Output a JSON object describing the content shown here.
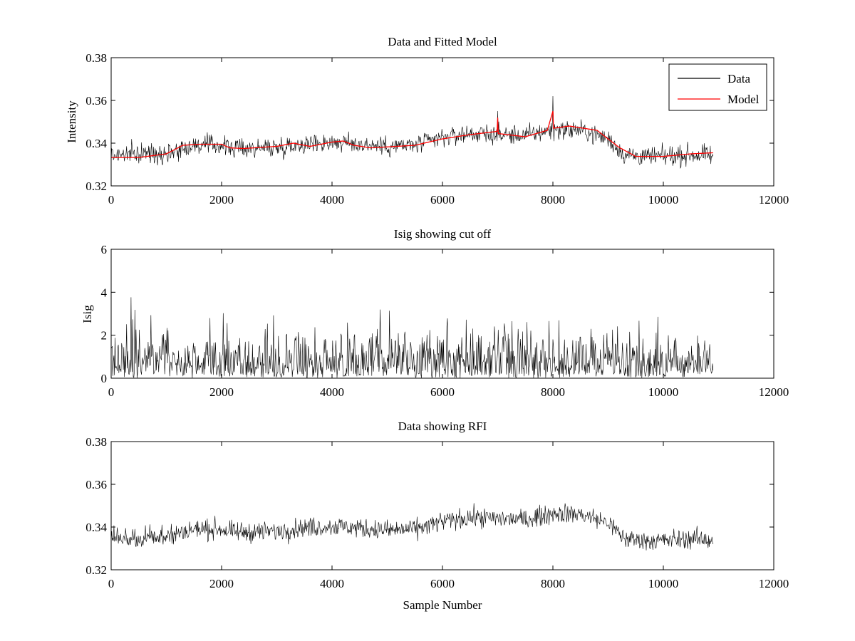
{
  "chart_data": [
    {
      "type": "line",
      "title": "Data and Fitted Model",
      "xlabel": "",
      "ylabel": "Intensity",
      "xlim": [
        0,
        12000
      ],
      "ylim": [
        0.32,
        0.38
      ],
      "xticks": [
        0,
        2000,
        4000,
        6000,
        8000,
        10000,
        12000
      ],
      "yticks": [
        0.32,
        0.34,
        0.36,
        0.38
      ],
      "xtick_labels": [
        "0",
        "2000",
        "4000",
        "6000",
        "8000",
        "10000",
        "12000"
      ],
      "ytick_labels": [
        "0.32",
        "0.34",
        "0.36",
        "0.38"
      ],
      "grid": false,
      "legend": {
        "position": "top-right",
        "entries": [
          "Data",
          "Model"
        ]
      },
      "series": [
        {
          "name": "Data",
          "color": "#000000",
          "kind": "noisy",
          "x_range": [
            0,
            10900
          ],
          "baseline": [
            [
              0,
              0.3345
            ],
            [
              1000,
              0.3355
            ],
            [
              1500,
              0.339
            ],
            [
              2000,
              0.339
            ],
            [
              2200,
              0.3375
            ],
            [
              3000,
              0.338
            ],
            [
              3400,
              0.3395
            ],
            [
              4000,
              0.3405
            ],
            [
              4500,
              0.3395
            ],
            [
              5000,
              0.3385
            ],
            [
              5500,
              0.339
            ],
            [
              6000,
              0.3425
            ],
            [
              6500,
              0.3445
            ],
            [
              7000,
              0.344
            ],
            [
              7500,
              0.3435
            ],
            [
              8000,
              0.3465
            ],
            [
              8500,
              0.346
            ],
            [
              9000,
              0.342
            ],
            [
              9300,
              0.3345
            ],
            [
              9800,
              0.3335
            ],
            [
              10500,
              0.3345
            ],
            [
              10900,
              0.334
            ]
          ],
          "noise_amplitude": 0.0045,
          "peak_values": {
            "max": 0.362,
            "min": 0.322
          },
          "spikes": [
            [
              7000,
              0.355
            ],
            [
              8000,
              0.362
            ]
          ]
        },
        {
          "name": "Model",
          "color": "#ff0000",
          "kind": "smooth",
          "values": [
            [
              0,
              0.3333
            ],
            [
              500,
              0.3333
            ],
            [
              1000,
              0.335
            ],
            [
              1300,
              0.339
            ],
            [
              1600,
              0.3395
            ],
            [
              2000,
              0.3395
            ],
            [
              2150,
              0.3378
            ],
            [
              2400,
              0.3375
            ],
            [
              3000,
              0.3385
            ],
            [
              3300,
              0.34
            ],
            [
              3600,
              0.3385
            ],
            [
              4000,
              0.3405
            ],
            [
              4200,
              0.341
            ],
            [
              4400,
              0.339
            ],
            [
              4700,
              0.3378
            ],
            [
              5500,
              0.339
            ],
            [
              6000,
              0.342
            ],
            [
              6500,
              0.344
            ],
            [
              6990,
              0.3455
            ],
            [
              7000,
              0.352
            ],
            [
              7010,
              0.3445
            ],
            [
              7500,
              0.343
            ],
            [
              7900,
              0.346
            ],
            [
              8000,
              0.355
            ],
            [
              8010,
              0.347
            ],
            [
              8300,
              0.348
            ],
            [
              8800,
              0.346
            ],
            [
              9200,
              0.338
            ],
            [
              9500,
              0.3338
            ],
            [
              10000,
              0.3338
            ],
            [
              10500,
              0.335
            ],
            [
              10900,
              0.3355
            ]
          ]
        }
      ]
    },
    {
      "type": "line",
      "title": "Isig showing cut off",
      "xlabel": "",
      "ylabel": "Isig",
      "xlim": [
        0,
        12000
      ],
      "ylim": [
        0,
        6
      ],
      "xticks": [
        0,
        2000,
        4000,
        6000,
        8000,
        10000,
        12000
      ],
      "yticks": [
        0,
        2,
        4,
        6
      ],
      "xtick_labels": [
        "0",
        "2000",
        "4000",
        "6000",
        "8000",
        "10000",
        "12000"
      ],
      "ytick_labels": [
        "0",
        "2",
        "4",
        "6"
      ],
      "grid": false,
      "series": [
        {
          "color": "#000000",
          "kind": "abs-noise",
          "x_range": [
            0,
            10900
          ],
          "typical_max": 2.5,
          "peak_value": 3.9
        }
      ]
    },
    {
      "type": "line",
      "title": "Data showing RFI",
      "xlabel": "Sample Number",
      "ylabel": "",
      "xlim": [
        0,
        12000
      ],
      "ylim": [
        0.32,
        0.38
      ],
      "xticks": [
        0,
        2000,
        4000,
        6000,
        8000,
        10000,
        12000
      ],
      "yticks": [
        0.32,
        0.34,
        0.36,
        0.38
      ],
      "xtick_labels": [
        "0",
        "2000",
        "4000",
        "6000",
        "8000",
        "10000",
        "12000"
      ],
      "ytick_labels": [
        "0.32",
        "0.34",
        "0.36",
        "0.38"
      ],
      "grid": false,
      "series": [
        {
          "color": "#000000",
          "kind": "noisy",
          "x_range": [
            0,
            10900
          ],
          "baseline": [
            [
              0,
              0.3345
            ],
            [
              1000,
              0.3355
            ],
            [
              1500,
              0.339
            ],
            [
              2000,
              0.339
            ],
            [
              2200,
              0.3375
            ],
            [
              3000,
              0.338
            ],
            [
              3400,
              0.3395
            ],
            [
              4000,
              0.3405
            ],
            [
              4500,
              0.3395
            ],
            [
              5000,
              0.3385
            ],
            [
              5500,
              0.339
            ],
            [
              6000,
              0.3425
            ],
            [
              6500,
              0.3445
            ],
            [
              7000,
              0.344
            ],
            [
              7500,
              0.3435
            ],
            [
              8000,
              0.3465
            ],
            [
              8500,
              0.346
            ],
            [
              9000,
              0.342
            ],
            [
              9300,
              0.3345
            ],
            [
              9800,
              0.3335
            ],
            [
              10500,
              0.3345
            ],
            [
              10900,
              0.334
            ]
          ],
          "noise_amplitude": 0.0045,
          "peak_values": {
            "max": 0.362,
            "min": 0.322
          }
        }
      ]
    }
  ]
}
